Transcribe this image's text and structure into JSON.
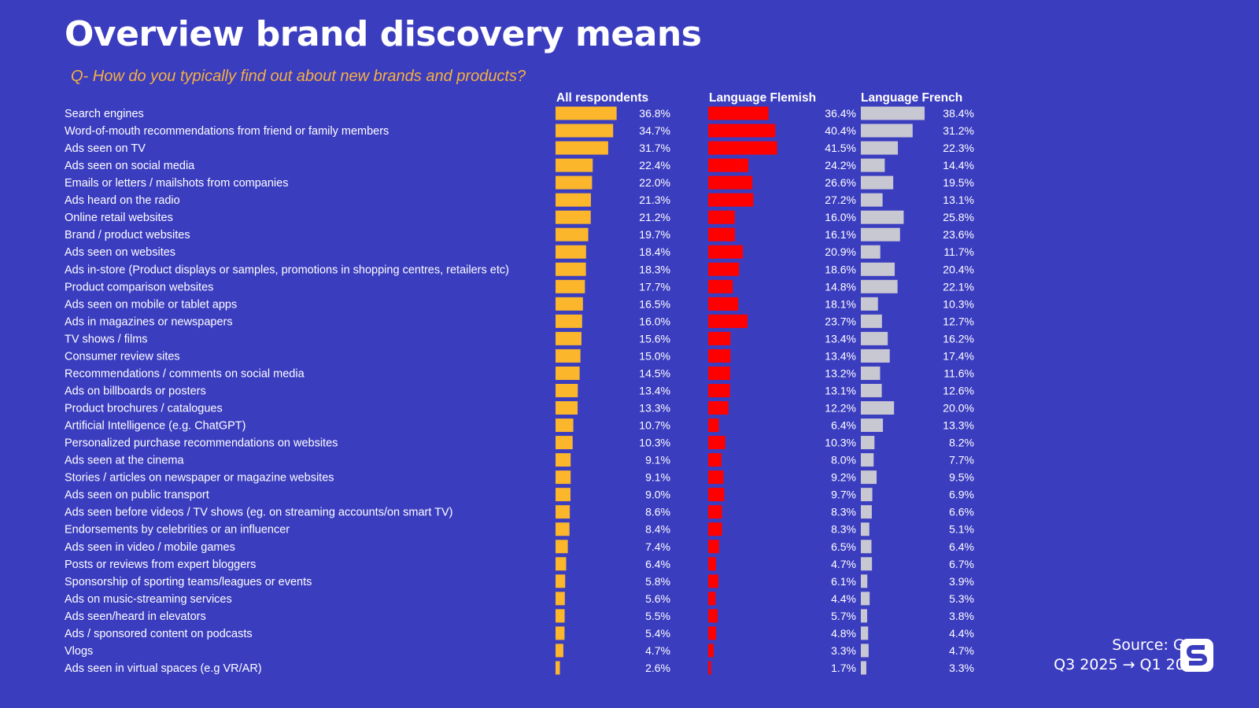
{
  "title": "Overview brand discovery means",
  "subtitle": "Q- How do you typically find out about new brands and products?",
  "source": {
    "line1": "Source: GWI",
    "line2": "Q3 2025 → Q1 2026"
  },
  "logo": {
    "icon": "s-logo-icon"
  },
  "colors": {
    "background": "#3b3dbf",
    "all_respondents": "#fbb62b",
    "flemish": "#ff0000",
    "french": "#c8c8d2",
    "subtitle": "#f5b041"
  },
  "chart_data": {
    "type": "bar",
    "orientation": "horizontal",
    "categories": [
      "Search engines",
      "Word-of-mouth recommendations from friend or family members",
      "Ads seen on TV",
      "Ads seen on social media",
      "Emails or letters / mailshots from companies",
      "Ads heard on the radio",
      "Online retail websites",
      "Brand / product websites",
      "Ads seen on websites",
      "Ads in-store (Product displays or samples, promotions in shopping centres, retailers etc)",
      "Product comparison websites",
      "Ads seen on mobile or tablet apps",
      "Ads in magazines or newspapers",
      "TV shows / films",
      "Consumer review sites",
      "Recommendations / comments on social media",
      "Ads on billboards or posters",
      "Product brochures / catalogues",
      "Artificial Intelligence (e.g. ChatGPT)",
      "Personalized purchase recommendations on websites",
      "Ads seen at the cinema",
      "Stories / articles on newspaper or magazine websites",
      "Ads seen on public transport",
      "Ads seen before videos / TV shows (eg. on streaming accounts/on smart TV)",
      "Endorsements by celebrities or an influencer",
      "Ads seen in video / mobile games",
      "Posts or reviews from expert bloggers",
      "Sponsorship of sporting teams/leagues or events",
      "Ads on music-streaming services",
      "Ads seen/heard in elevators",
      "Ads / sponsored content on podcasts",
      "Vlogs",
      "Ads seen in virtual spaces (e.g VR/AR)"
    ],
    "series": [
      {
        "name": "All respondents",
        "values": [
          36.8,
          34.7,
          31.7,
          22.4,
          22.0,
          21.3,
          21.2,
          19.7,
          18.4,
          18.3,
          17.7,
          16.5,
          16.0,
          15.6,
          15.0,
          14.5,
          13.4,
          13.3,
          10.7,
          10.3,
          9.1,
          9.1,
          9.0,
          8.6,
          8.4,
          7.4,
          6.4,
          5.8,
          5.6,
          5.5,
          5.4,
          4.7,
          2.6
        ]
      },
      {
        "name": "Language Flemish",
        "values": [
          36.4,
          40.4,
          41.5,
          24.2,
          26.6,
          27.2,
          16.0,
          16.1,
          20.9,
          18.6,
          14.8,
          18.1,
          23.7,
          13.4,
          13.4,
          13.2,
          13.1,
          12.2,
          6.4,
          10.3,
          8.0,
          9.2,
          9.7,
          8.3,
          8.3,
          6.5,
          4.7,
          6.1,
          4.4,
          5.7,
          4.8,
          3.3,
          1.7
        ]
      },
      {
        "name": "Language French",
        "values": [
          38.4,
          31.2,
          22.3,
          14.4,
          19.5,
          13.1,
          25.8,
          23.6,
          11.7,
          20.4,
          22.1,
          10.3,
          12.7,
          16.2,
          17.4,
          11.6,
          12.6,
          20.0,
          13.3,
          8.2,
          7.7,
          9.5,
          6.9,
          6.6,
          5.1,
          6.4,
          6.7,
          3.9,
          5.3,
          3.8,
          4.4,
          4.7,
          3.3
        ]
      }
    ],
    "value_format": "%",
    "decimals": 1,
    "legend": "column-headers",
    "grid": false
  }
}
